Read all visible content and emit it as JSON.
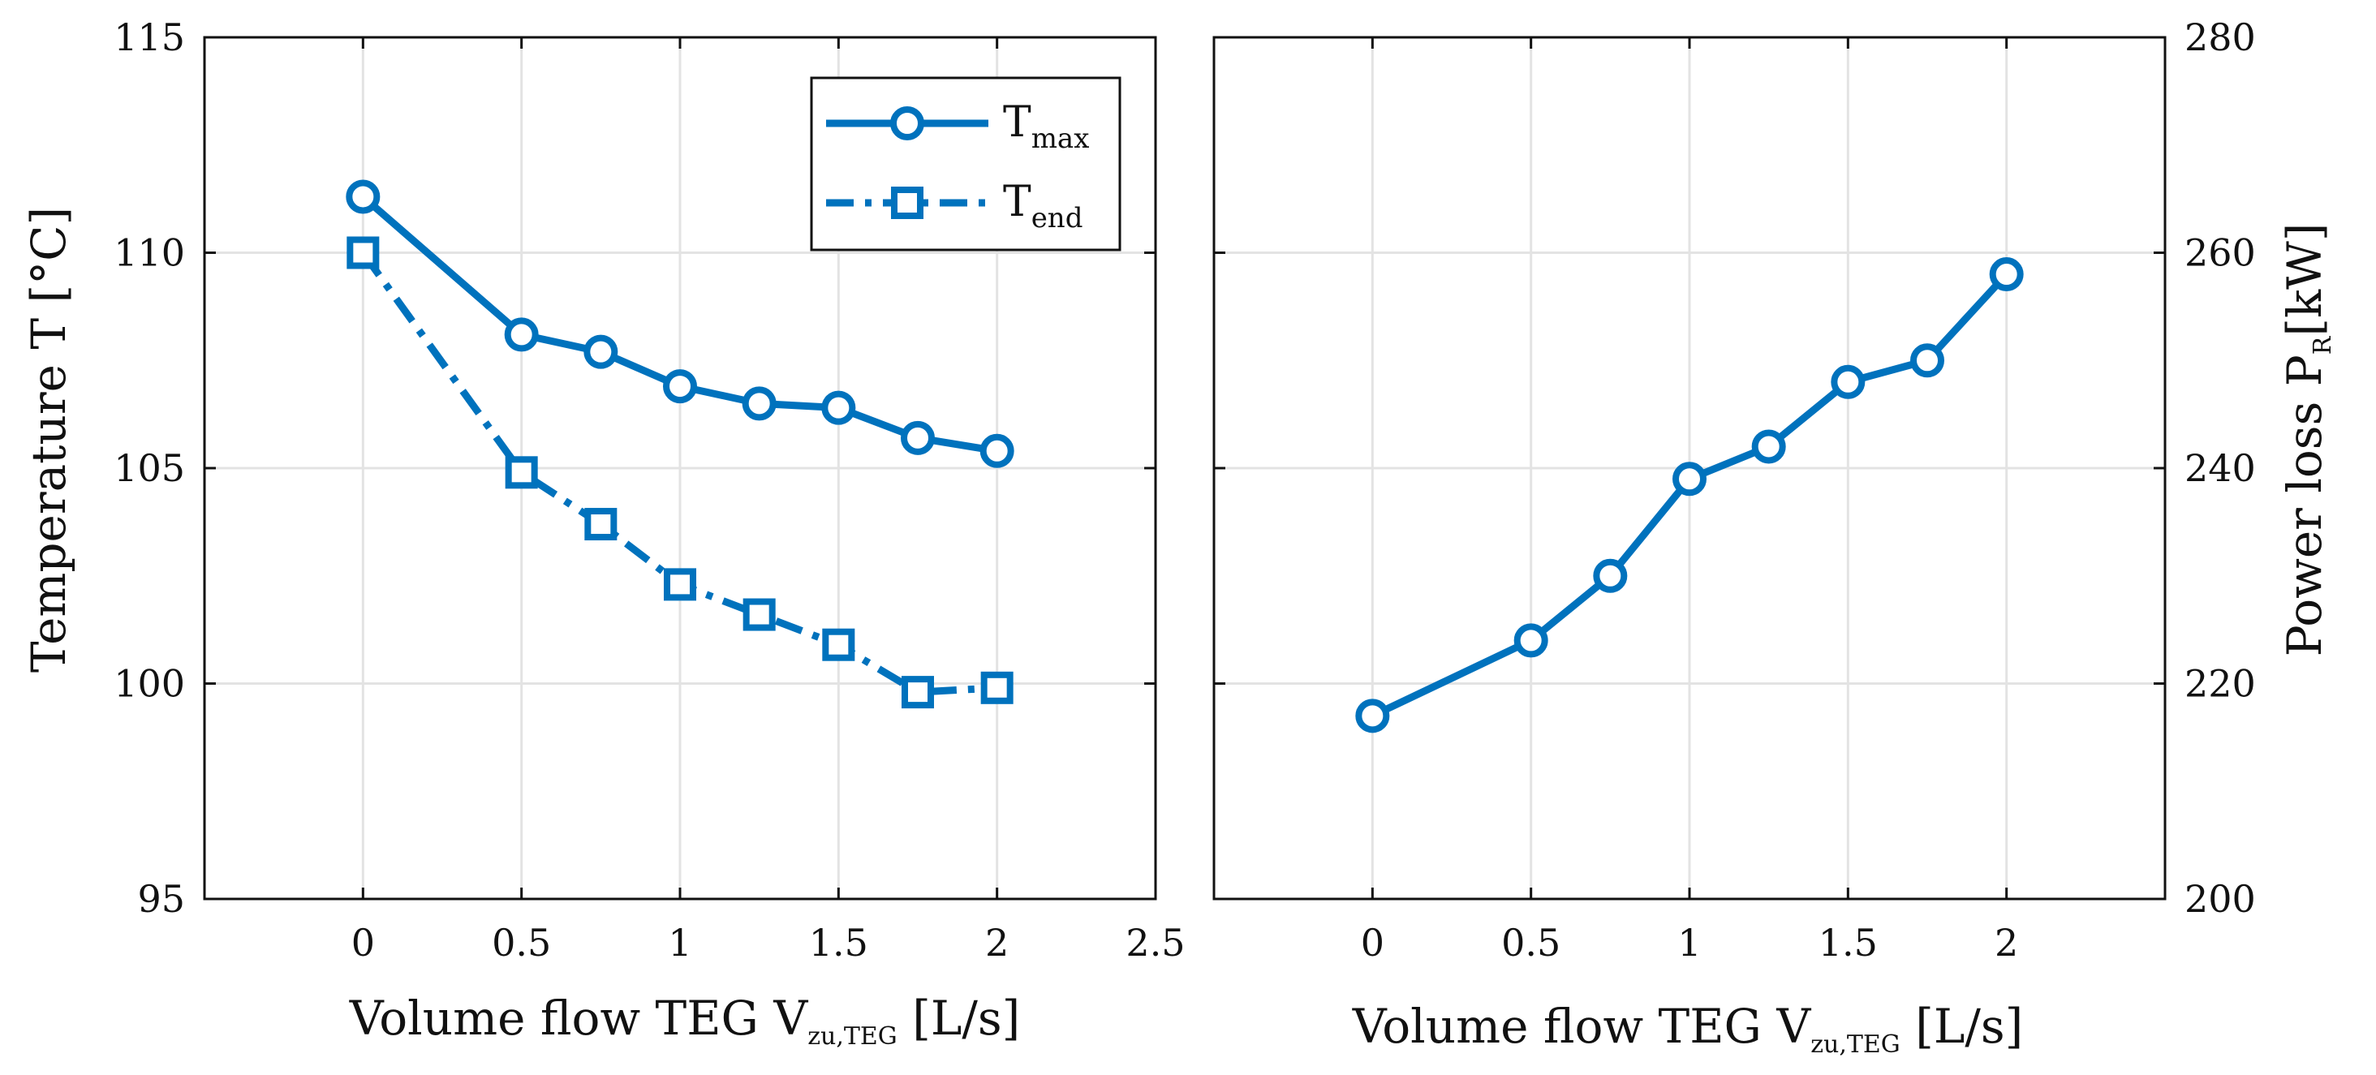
{
  "chart_data": [
    {
      "type": "line",
      "panel": "left",
      "x": [
        0,
        0.5,
        0.75,
        1,
        1.25,
        1.5,
        1.75,
        2
      ],
      "series": [
        {
          "name": "T_max",
          "label_main": "T",
          "label_sub": "max",
          "marker": "circle",
          "linestyle": "solid",
          "values": [
            111.3,
            108.1,
            107.7,
            106.9,
            106.5,
            106.4,
            105.7,
            105.4
          ]
        },
        {
          "name": "T_end",
          "label_main": "T",
          "label_sub": "end",
          "marker": "square",
          "linestyle": "dashdot",
          "values": [
            110.0,
            104.9,
            103.7,
            102.3,
            101.6,
            100.9,
            99.8,
            99.9
          ]
        }
      ],
      "xlabel_main": "Volume flow TEG V",
      "xlabel_sub": "zu,TEG",
      "xlabel_tail": " [L/s]",
      "ylabel": "Temperature T [°C]",
      "xlim": [
        -0.5,
        2.5
      ],
      "ylim": [
        95,
        115
      ],
      "xticks": [
        0,
        0.5,
        1,
        1.5,
        2,
        2.5
      ],
      "xtick_labels": [
        "0",
        "0.5",
        "1",
        "1.5",
        "2",
        "2.5"
      ],
      "yticks": [
        95,
        100,
        105,
        110,
        115
      ],
      "ytick_labels": [
        "95",
        "100",
        "105",
        "110",
        "115"
      ],
      "grid": true,
      "legend": "top-right"
    },
    {
      "type": "line",
      "panel": "right",
      "x": [
        0,
        0.5,
        0.75,
        1,
        1.25,
        1.5,
        1.75,
        2
      ],
      "series": [
        {
          "name": "P_R",
          "marker": "circle",
          "linestyle": "solid",
          "values": [
            217,
            224,
            230,
            239,
            242,
            248,
            250,
            258
          ]
        }
      ],
      "xlabel_main": "Volume flow TEG V",
      "xlabel_sub": "zu,TEG",
      "xlabel_tail": " [L/s]",
      "ylabel_main": "Power loss P",
      "ylabel_sub": "R",
      "ylabel_tail": "[kW]",
      "xlim": [
        -0.5,
        2.5
      ],
      "ylim": [
        200,
        280
      ],
      "xticks": [
        0,
        0.5,
        1,
        1.5,
        2
      ],
      "xtick_labels": [
        "0",
        "0.5",
        "1",
        "1.5",
        "2"
      ],
      "yticks": [
        200,
        220,
        240,
        260,
        280
      ],
      "ytick_labels": [
        "200",
        "220",
        "240",
        "260",
        "280"
      ],
      "grid": true,
      "y_axis_side": "right"
    }
  ],
  "colors": {
    "series": "#0072BD",
    "grid": "#e3e3e3",
    "axis": "#111111"
  }
}
